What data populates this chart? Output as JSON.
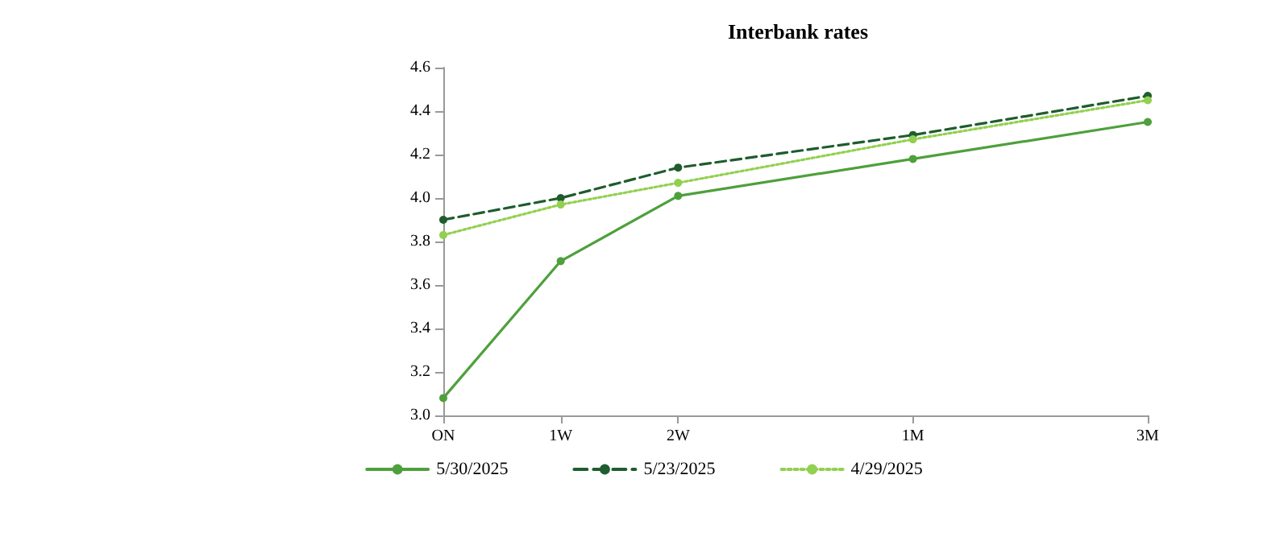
{
  "chart_data": {
    "type": "line",
    "title": "Interbank rates",
    "categories": [
      "ON",
      "1W",
      "2W",
      null,
      "1M",
      null,
      "3M"
    ],
    "ylim": [
      3.0,
      4.6
    ],
    "yticks": [
      {
        "value": 3.0,
        "label": "3.0"
      },
      {
        "value": 3.2,
        "label": "3.2"
      },
      {
        "value": 3.4,
        "label": "3.4"
      },
      {
        "value": 3.6,
        "label": "3.6"
      },
      {
        "value": 3.8,
        "label": "3.8"
      },
      {
        "value": 4.0,
        "label": "4.0"
      },
      {
        "value": 4.2,
        "label": "4.2"
      },
      {
        "value": 4.4,
        "label": "4.4"
      },
      {
        "value": 4.6,
        "label": "4.6"
      }
    ],
    "series": [
      {
        "name": "5/30/2025",
        "color": "#4ea03c",
        "line_style": "solid",
        "values": [
          3.08,
          3.71,
          4.01,
          null,
          4.18,
          null,
          4.35
        ]
      },
      {
        "name": "5/23/2025",
        "color": "#1f5c2e",
        "line_style": "dashed",
        "values": [
          3.9,
          4.0,
          4.14,
          null,
          4.29,
          null,
          4.47
        ]
      },
      {
        "name": "4/29/2025",
        "color": "#92d050",
        "line_style": "dotted",
        "values": [
          3.83,
          3.97,
          4.07,
          null,
          4.27,
          null,
          4.45
        ]
      }
    ],
    "marker": "circle",
    "grid": false,
    "legend": "bottom"
  }
}
